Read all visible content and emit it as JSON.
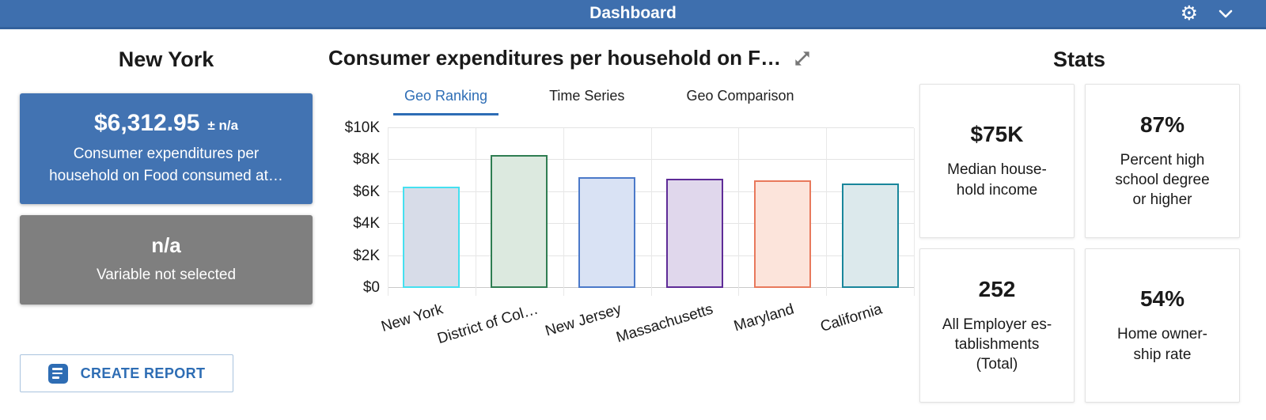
{
  "header": {
    "title": "Dashboard",
    "bg_color": "#3e6fae",
    "icons": {
      "gear": "⚙",
      "chevron_down": "chevron-down glyph (svg)"
    }
  },
  "left_panel": {
    "title": "New York",
    "primary_card": {
      "value": "$6,312.95",
      "uncertainty": "± n/a",
      "description": "Consumer expenditures per\nhousehold on Food consumed at…",
      "bg_color": "#4273b2"
    },
    "secondary_card": {
      "value": "n/a",
      "description": "Variable not selected",
      "bg_color": "#7f7f7f"
    },
    "create_report_button": {
      "label": "CREATE REPORT",
      "accent_color": "#2e6db4"
    }
  },
  "chart_panel": {
    "title": "Consumer expenditures per household on F…",
    "tabs": [
      {
        "label": "Geo Ranking",
        "active": true
      },
      {
        "label": "Time Series",
        "active": false
      },
      {
        "label": "Geo Comparison",
        "active": false
      }
    ],
    "accent_color": "#2d6db5"
  },
  "chart_data": {
    "type": "bar",
    "title": "Consumer expenditures per household on F…",
    "categories": [
      "New York",
      "District of Col…",
      "New Jersey",
      "Massachusetts",
      "Maryland",
      "California"
    ],
    "values": [
      6313,
      8300,
      6950,
      6850,
      6750,
      6550
    ],
    "bar_styles": [
      {
        "fill": "#d7dce8",
        "stroke": "#45e0f0"
      },
      {
        "fill": "#dce9df",
        "stroke": "#2f7d52"
      },
      {
        "fill": "#d9e2f4",
        "stroke": "#4b79c9"
      },
      {
        "fill": "#e0d7ec",
        "stroke": "#5e2b97"
      },
      {
        "fill": "#fce4db",
        "stroke": "#e8795c"
      },
      {
        "fill": "#dce9ec",
        "stroke": "#19869b"
      }
    ],
    "xlabel": "",
    "ylabel": "",
    "ylim": [
      0,
      10000
    ],
    "ytick_step": 2000,
    "ytick_labels": [
      "$0",
      "$2K",
      "$4K",
      "$6K",
      "$8K",
      "$10K"
    ],
    "grid": true,
    "legend": "none"
  },
  "stats_panel": {
    "title": "Stats",
    "cards": [
      {
        "value": "$75K",
        "label": "Median house-\nhold income"
      },
      {
        "value": "87%",
        "label": "Percent high\nschool degree\nor higher"
      },
      {
        "value": "252",
        "label": "All Employer es-\ntablishments\n(Total)"
      },
      {
        "value": "54%",
        "label": "Home owner-\nship rate"
      }
    ]
  }
}
